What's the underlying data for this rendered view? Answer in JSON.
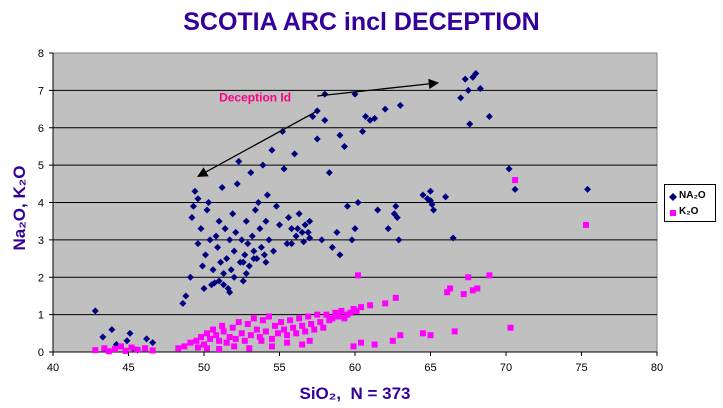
{
  "chart_data": {
    "type": "scatter",
    "title": "SCOTIA ARC incl DECEPTION",
    "xlabel": "SiO₂,  N = 373",
    "ylabel": "Na₂O, K₂O",
    "xlim": [
      40,
      80
    ],
    "ylim": [
      0,
      8
    ],
    "x_ticks": [
      "40",
      "45",
      "50",
      "55",
      "60",
      "65",
      "70",
      "75",
      "80"
    ],
    "y_ticks": [
      "0",
      "1",
      "2",
      "3",
      "4",
      "5",
      "6",
      "7",
      "8"
    ],
    "grid": "horizontal",
    "legend": "right",
    "background_color": "#c0c0c0",
    "annotation": {
      "text": "Deception Id",
      "color": "#ff0080",
      "arrows": [
        {
          "from": [
            57.5,
            6.45
          ],
          "to": [
            49.6,
            4.7
          ]
        },
        {
          "from": [
            57.5,
            6.85
          ],
          "to": [
            65.5,
            7.2
          ]
        }
      ]
    },
    "series": [
      {
        "name": "NA₂O",
        "color": "#000080",
        "marker": "diamond",
        "points": [
          [
            42.8,
            1.1
          ],
          [
            43.3,
            0.4
          ],
          [
            43.9,
            0.6
          ],
          [
            44.2,
            0.2
          ],
          [
            44.9,
            0.3
          ],
          [
            45.1,
            0.5
          ],
          [
            45.3,
            0.1
          ],
          [
            46.2,
            0.35
          ],
          [
            46.6,
            0.25
          ],
          [
            45.6,
            0.05
          ],
          [
            48.6,
            1.3
          ],
          [
            48.8,
            1.5
          ],
          [
            49.1,
            2.0
          ],
          [
            49.2,
            3.6
          ],
          [
            49.3,
            3.9
          ],
          [
            49.4,
            4.3
          ],
          [
            49.6,
            4.1
          ],
          [
            49.8,
            3.3
          ],
          [
            49.9,
            2.3
          ],
          [
            50.0,
            1.7
          ],
          [
            49.6,
            2.9
          ],
          [
            50.1,
            2.6
          ],
          [
            50.2,
            3.8
          ],
          [
            50.3,
            4.0
          ],
          [
            50.4,
            3.0
          ],
          [
            50.5,
            1.8
          ],
          [
            50.6,
            2.2
          ],
          [
            50.8,
            3.1
          ],
          [
            50.9,
            2.8
          ],
          [
            51.0,
            3.5
          ],
          [
            51.0,
            1.9
          ],
          [
            51.2,
            4.4
          ],
          [
            51.3,
            2.1
          ],
          [
            51.4,
            3.3
          ],
          [
            51.5,
            2.5
          ],
          [
            51.6,
            1.7
          ],
          [
            51.7,
            3.0
          ],
          [
            51.8,
            2.2
          ],
          [
            51.9,
            3.7
          ],
          [
            52.0,
            2.0
          ],
          [
            52.0,
            2.7
          ],
          [
            52.1,
            3.2
          ],
          [
            52.2,
            4.5
          ],
          [
            52.3,
            5.1
          ],
          [
            52.4,
            2.4
          ],
          [
            52.5,
            3.0
          ],
          [
            52.6,
            1.9
          ],
          [
            52.7,
            2.6
          ],
          [
            52.8,
            3.5
          ],
          [
            52.9,
            2.9
          ],
          [
            53.0,
            2.3
          ],
          [
            53.1,
            4.8
          ],
          [
            53.2,
            3.1
          ],
          [
            53.3,
            2.7
          ],
          [
            53.4,
            3.8
          ],
          [
            53.5,
            2.5
          ],
          [
            53.6,
            4.0
          ],
          [
            53.7,
            3.3
          ],
          [
            53.8,
            2.8
          ],
          [
            53.9,
            5.0
          ],
          [
            54.0,
            2.6
          ],
          [
            54.1,
            3.5
          ],
          [
            54.2,
            4.2
          ],
          [
            54.3,
            3.0
          ],
          [
            54.5,
            5.4
          ],
          [
            54.6,
            2.7
          ],
          [
            54.8,
            3.9
          ],
          [
            55.0,
            3.4
          ],
          [
            55.2,
            5.9
          ],
          [
            55.3,
            4.9
          ],
          [
            55.5,
            2.9
          ],
          [
            55.6,
            3.6
          ],
          [
            55.8,
            3.3
          ],
          [
            56.0,
            5.3
          ],
          [
            56.1,
            3.1
          ],
          [
            56.3,
            3.7
          ],
          [
            56.5,
            3.2
          ],
          [
            56.7,
            3.4
          ],
          [
            56.9,
            3.2
          ],
          [
            57.0,
            3.5
          ],
          [
            57.2,
            6.3
          ],
          [
            57.5,
            5.7
          ],
          [
            57.8,
            3.0
          ],
          [
            58.0,
            6.2
          ],
          [
            58.3,
            4.8
          ],
          [
            58.5,
            2.8
          ],
          [
            58.8,
            3.2
          ],
          [
            59.0,
            2.6
          ],
          [
            59.3,
            5.5
          ],
          [
            59.5,
            3.9
          ],
          [
            59.8,
            3.0
          ],
          [
            60.0,
            3.3
          ],
          [
            60.0,
            6.9
          ],
          [
            60.2,
            4.0
          ],
          [
            60.5,
            5.9
          ],
          [
            61.0,
            6.2
          ],
          [
            61.3,
            6.25
          ],
          [
            61.5,
            3.8
          ],
          [
            62.0,
            6.5
          ],
          [
            62.2,
            3.3
          ],
          [
            62.6,
            3.7
          ],
          [
            62.7,
            3.9
          ],
          [
            62.8,
            3.6
          ],
          [
            62.9,
            3.0
          ],
          [
            63.0,
            6.6
          ],
          [
            64.5,
            4.2
          ],
          [
            64.8,
            4.1
          ],
          [
            65.0,
            4.05
          ],
          [
            65.1,
            3.95
          ],
          [
            65.2,
            3.8
          ],
          [
            65.0,
            4.3
          ],
          [
            66.0,
            4.15
          ],
          [
            66.5,
            3.05
          ],
          [
            67.0,
            6.8
          ],
          [
            67.3,
            7.3
          ],
          [
            67.5,
            7.0
          ],
          [
            67.6,
            6.1
          ],
          [
            67.8,
            7.35
          ],
          [
            68.0,
            7.45
          ],
          [
            68.3,
            7.05
          ],
          [
            68.9,
            6.3
          ],
          [
            70.2,
            4.9
          ],
          [
            70.6,
            4.35
          ],
          [
            75.4,
            4.35
          ],
          [
            60.7,
            6.3
          ],
          [
            58.0,
            6.9
          ],
          [
            57.5,
            6.45
          ],
          [
            59.0,
            5.8
          ],
          [
            56.2,
            3.3
          ],
          [
            55.8,
            2.9
          ],
          [
            57.0,
            3.05
          ],
          [
            56.6,
            2.95
          ],
          [
            51.3,
            1.8
          ],
          [
            51.7,
            1.6
          ],
          [
            51.1,
            2.4
          ],
          [
            50.7,
            1.85
          ],
          [
            52.6,
            2.4
          ],
          [
            53.3,
            2.5
          ],
          [
            54.1,
            2.4
          ],
          [
            52.8,
            2.1
          ]
        ]
      },
      {
        "name": "K₂O",
        "color": "#ff00ff",
        "marker": "square",
        "points": [
          [
            42.8,
            0.05
          ],
          [
            43.4,
            0.1
          ],
          [
            44.1,
            0.08
          ],
          [
            44.8,
            0.03
          ],
          [
            45.2,
            0.12
          ],
          [
            45.6,
            0.06
          ],
          [
            46.1,
            0.1
          ],
          [
            46.6,
            0.04
          ],
          [
            44.5,
            0.15
          ],
          [
            43.7,
            0.02
          ],
          [
            48.3,
            0.1
          ],
          [
            48.7,
            0.15
          ],
          [
            49.1,
            0.25
          ],
          [
            49.5,
            0.3
          ],
          [
            49.8,
            0.4
          ],
          [
            50.0,
            0.2
          ],
          [
            50.2,
            0.5
          ],
          [
            50.4,
            0.35
          ],
          [
            50.6,
            0.6
          ],
          [
            50.8,
            0.45
          ],
          [
            51.0,
            0.3
          ],
          [
            51.2,
            0.7
          ],
          [
            51.3,
            0.55
          ],
          [
            51.5,
            0.25
          ],
          [
            51.7,
            0.4
          ],
          [
            51.9,
            0.65
          ],
          [
            52.1,
            0.35
          ],
          [
            52.3,
            0.8
          ],
          [
            52.5,
            0.5
          ],
          [
            52.7,
            0.3
          ],
          [
            52.9,
            0.75
          ],
          [
            53.1,
            0.45
          ],
          [
            53.3,
            0.9
          ],
          [
            53.5,
            0.6
          ],
          [
            53.7,
            0.4
          ],
          [
            53.9,
            0.85
          ],
          [
            54.1,
            0.55
          ],
          [
            54.3,
            0.95
          ],
          [
            54.5,
            0.35
          ],
          [
            54.7,
            0.7
          ],
          [
            54.9,
            0.5
          ],
          [
            55.1,
            0.8
          ],
          [
            55.3,
            0.6
          ],
          [
            55.5,
            0.45
          ],
          [
            55.7,
            0.85
          ],
          [
            55.9,
            0.65
          ],
          [
            56.1,
            0.5
          ],
          [
            56.3,
            0.9
          ],
          [
            56.5,
            0.7
          ],
          [
            56.7,
            0.55
          ],
          [
            56.9,
            0.95
          ],
          [
            57.1,
            0.75
          ],
          [
            57.3,
            0.6
          ],
          [
            57.5,
            1.0
          ],
          [
            57.7,
            0.8
          ],
          [
            57.9,
            0.65
          ],
          [
            58.1,
            1.0
          ],
          [
            58.3,
            0.85
          ],
          [
            58.5,
            0.9
          ],
          [
            58.7,
            1.05
          ],
          [
            58.9,
            0.95
          ],
          [
            59.1,
            1.1
          ],
          [
            59.3,
            0.9
          ],
          [
            59.5,
            1.0
          ],
          [
            59.7,
            1.05
          ],
          [
            59.9,
            1.15
          ],
          [
            60.1,
            1.1
          ],
          [
            60.4,
            1.2
          ],
          [
            61.0,
            1.25
          ],
          [
            62.0,
            1.3
          ],
          [
            62.7,
            1.45
          ],
          [
            63.0,
            0.45
          ],
          [
            62.5,
            0.3
          ],
          [
            64.5,
            0.5
          ],
          [
            65.0,
            0.45
          ],
          [
            66.3,
            1.7
          ],
          [
            66.6,
            0.55
          ],
          [
            67.2,
            1.55
          ],
          [
            67.5,
            2.0
          ],
          [
            67.8,
            1.65
          ],
          [
            68.1,
            1.7
          ],
          [
            68.9,
            2.05
          ],
          [
            70.3,
            0.65
          ],
          [
            70.6,
            4.6
          ],
          [
            75.3,
            3.4
          ],
          [
            60.2,
            2.05
          ],
          [
            66.1,
            1.6
          ],
          [
            61.3,
            0.2
          ],
          [
            60.4,
            0.25
          ],
          [
            59.9,
            0.15
          ],
          [
            57.0,
            0.3
          ],
          [
            56.5,
            0.2
          ],
          [
            55.5,
            0.25
          ],
          [
            54.5,
            0.15
          ],
          [
            53.0,
            0.1
          ],
          [
            52.0,
            0.15
          ],
          [
            51.0,
            0.08
          ],
          [
            50.2,
            0.1
          ],
          [
            49.6,
            0.12
          ],
          [
            53.8,
            0.3
          ]
        ]
      }
    ]
  }
}
